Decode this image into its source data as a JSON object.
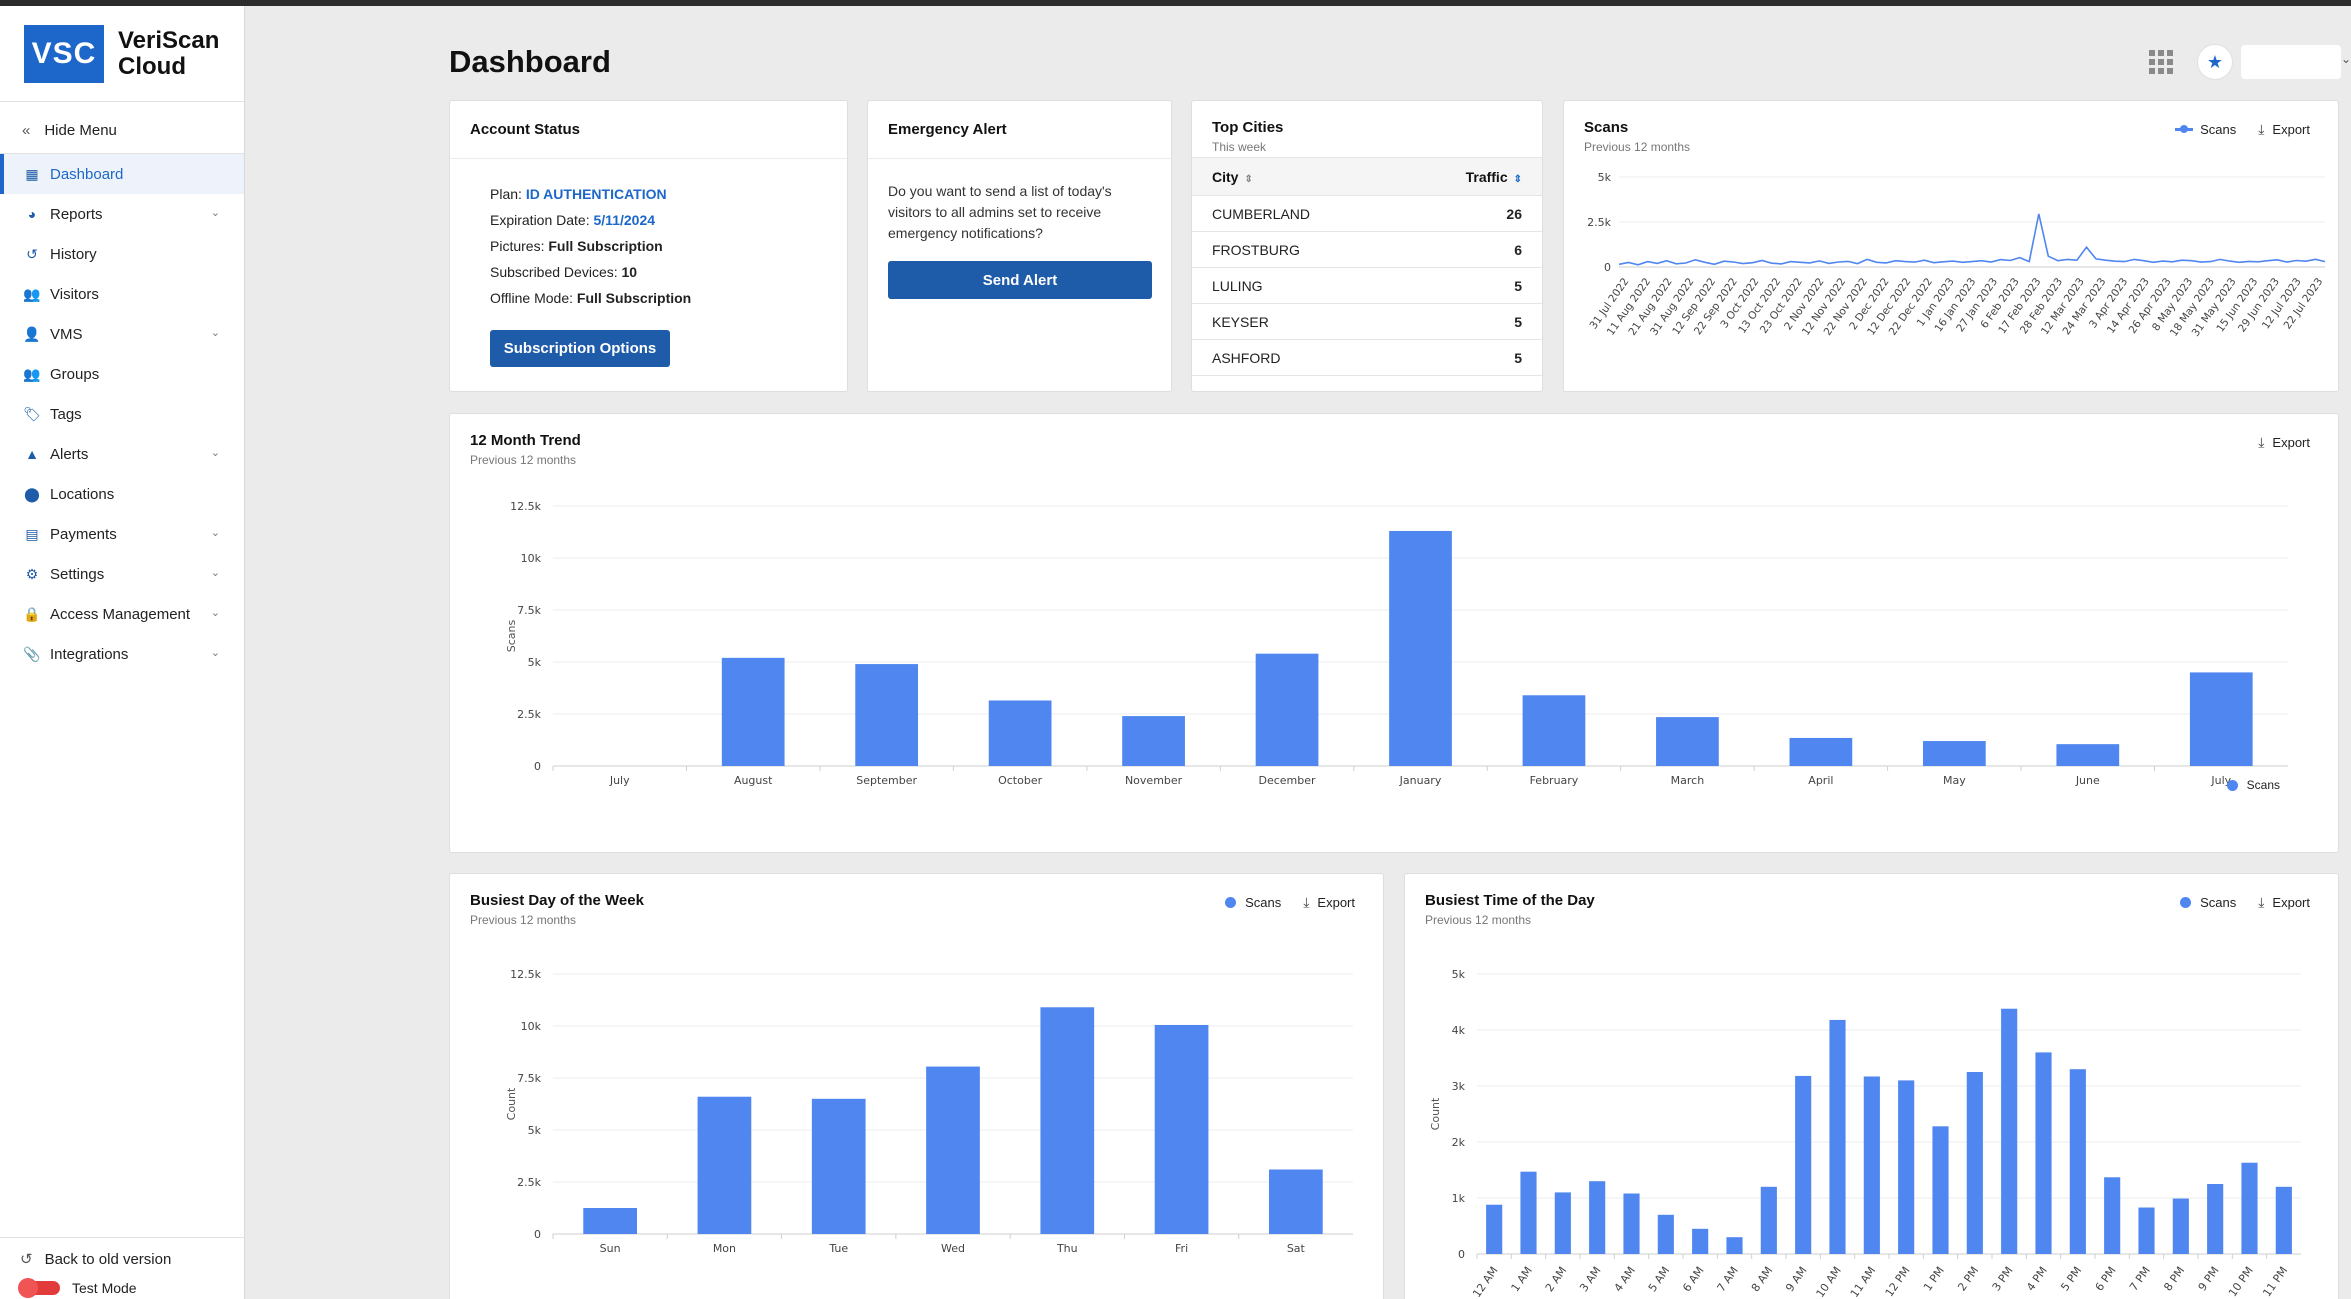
{
  "app": {
    "logo_mark": "VSC",
    "name_line1": "VeriScan",
    "name_line2": "Cloud"
  },
  "sidebar": {
    "hide_menu": "Hide Menu",
    "items": [
      {
        "label": "Dashboard",
        "icon": "dashboard-icon",
        "active": true,
        "expandable": false
      },
      {
        "label": "Reports",
        "icon": "pie-chart-icon",
        "expandable": true
      },
      {
        "label": "History",
        "icon": "history-icon",
        "expandable": false
      },
      {
        "label": "Visitors",
        "icon": "users-icon",
        "expandable": false
      },
      {
        "label": "VMS",
        "icon": "person-icon",
        "expandable": true
      },
      {
        "label": "Groups",
        "icon": "group-icon",
        "expandable": false
      },
      {
        "label": "Tags",
        "icon": "tag-icon",
        "expandable": false
      },
      {
        "label": "Alerts",
        "icon": "warning-icon",
        "expandable": true
      },
      {
        "label": "Locations",
        "icon": "location-pin-icon",
        "expandable": false
      },
      {
        "label": "Payments",
        "icon": "payment-icon",
        "expandable": true
      },
      {
        "label": "Settings",
        "icon": "gear-icon",
        "expandable": true
      },
      {
        "label": "Access Management",
        "icon": "lock-icon",
        "expandable": true
      },
      {
        "label": "Integrations",
        "icon": "paperclip-icon",
        "expandable": true
      }
    ],
    "back_old": "Back to old version",
    "test_mode": "Test Mode"
  },
  "header": {
    "title": "Dashboard"
  },
  "account_status": {
    "title": "Account Status",
    "plan_label": "Plan:",
    "plan_value": "ID AUTHENTICATION",
    "expiration_label": "Expiration Date:",
    "expiration_value": "5/11/2024",
    "pictures_label": "Pictures:",
    "pictures_value": "Full Subscription",
    "devices_label": "Subscribed Devices:",
    "devices_value": "10",
    "offline_label": "Offline Mode:",
    "offline_value": "Full Subscription",
    "button": "Subscription Options"
  },
  "emergency_alert": {
    "title": "Emergency Alert",
    "text": "Do you want to send a list of today's visitors to all admins set to receive emergency notifications?",
    "button": "Send Alert"
  },
  "top_cities": {
    "title": "Top Cities",
    "subtitle": "This week",
    "col_city": "City",
    "col_traffic": "Traffic",
    "rows": [
      {
        "city": "CUMBERLAND",
        "traffic": "26"
      },
      {
        "city": "FROSTBURG",
        "traffic": "6"
      },
      {
        "city": "LULING",
        "traffic": "5"
      },
      {
        "city": "KEYSER",
        "traffic": "5"
      },
      {
        "city": "ASHFORD",
        "traffic": "5"
      }
    ]
  },
  "scans_card": {
    "title": "Scans",
    "subtitle": "Previous 12 months",
    "legend": "Scans",
    "export": "Export"
  },
  "trend_card": {
    "title": "12 Month Trend",
    "subtitle": "Previous 12 months",
    "legend": "Scans",
    "export": "Export"
  },
  "day_card": {
    "title": "Busiest Day of the Week",
    "subtitle": "Previous 12 months",
    "legend": "Scans",
    "export": "Export"
  },
  "time_card": {
    "title": "Busiest Time of the Day",
    "subtitle": "Previous 12 months",
    "legend": "Scans",
    "export": "Export"
  },
  "chart_data": [
    {
      "id": "scans",
      "type": "line",
      "title": "Scans",
      "yticks": [
        "0",
        "2.5k",
        "5k"
      ],
      "ylim": [
        0,
        5000
      ],
      "xticks": [
        "31 Jul 2022",
        "11 Aug 2022",
        "21 Aug 2022",
        "31 Aug 2022",
        "12 Sep 2022",
        "22 Sep 2022",
        "3 Oct 2022",
        "13 Oct 2022",
        "23 Oct 2022",
        "2 Nov 2022",
        "12 Nov 2022",
        "22 Nov 2022",
        "2 Dec 2022",
        "12 Dec 2022",
        "22 Dec 2022",
        "1 Jan 2023",
        "16 Jan 2023",
        "27 Jan 2023",
        "6 Feb 2023",
        "17 Feb 2023",
        "28 Feb 2023",
        "12 Mar 2023",
        "24 Mar 2023",
        "3 Apr 2023",
        "14 Apr 2023",
        "26 Apr 2023",
        "8 May 2023",
        "18 May 2023",
        "31 May 2023",
        "15 Jun 2023",
        "29 Jun 2023",
        "12 Jul 2023",
        "22 Jul 2023"
      ],
      "series": [
        {
          "name": "Scans",
          "values": [
            150,
            250,
            120,
            300,
            200,
            350,
            180,
            220,
            400,
            260,
            150,
            320,
            280,
            190,
            240,
            360,
            210,
            170,
            300,
            260,
            230,
            340,
            200,
            280,
            310,
            190,
            420,
            260,
            230,
            350,
            300,
            270,
            380,
            240,
            290,
            330,
            260,
            300,
            350,
            280,
            410,
            360,
            520,
            300,
            2950,
            600,
            350,
            420,
            380,
            1100,
            450,
            380,
            320,
            300,
            420,
            350,
            260,
            330,
            290,
            380,
            350,
            270,
            300,
            420,
            330,
            260,
            310,
            290,
            350,
            400,
            280,
            360,
            320,
            430,
            300
          ]
        }
      ]
    },
    {
      "id": "trend",
      "type": "bar",
      "title": "12 Month Trend",
      "ylabel": "Scans",
      "ylim": [
        0,
        12500
      ],
      "yticks": [
        "0",
        "2.5k",
        "5k",
        "7.5k",
        "10k",
        "12.5k"
      ],
      "categories": [
        "July",
        "August",
        "September",
        "October",
        "November",
        "December",
        "January",
        "February",
        "March",
        "April",
        "May",
        "June",
        "July"
      ],
      "series": [
        {
          "name": "Scans",
          "values": [
            0,
            5200,
            4900,
            3150,
            2400,
            5400,
            11300,
            3400,
            2350,
            1350,
            1200,
            1050,
            4500
          ]
        }
      ]
    },
    {
      "id": "day",
      "type": "bar",
      "title": "Busiest Day of the Week",
      "ylabel": "Count",
      "ylim": [
        0,
        12500
      ],
      "yticks": [
        "0",
        "2.5k",
        "5k",
        "7.5k",
        "10k",
        "12.5k"
      ],
      "categories": [
        "Sun",
        "Mon",
        "Tue",
        "Wed",
        "Thu",
        "Fri",
        "Sat"
      ],
      "series": [
        {
          "name": "Scans",
          "values": [
            1250,
            6600,
            6500,
            8050,
            10900,
            10050,
            3100
          ]
        }
      ]
    },
    {
      "id": "time",
      "type": "bar",
      "title": "Busiest Time of the Day",
      "ylabel": "Count",
      "ylim": [
        0,
        5000
      ],
      "yticks": [
        "0",
        "1k",
        "2k",
        "3k",
        "4k",
        "5k"
      ],
      "categories": [
        "12 AM",
        "1 AM",
        "2 AM",
        "3 AM",
        "4 AM",
        "5 AM",
        "6 AM",
        "7 AM",
        "8 AM",
        "9 AM",
        "10 AM",
        "11 AM",
        "12 PM",
        "1 PM",
        "2 PM",
        "3 PM",
        "4 PM",
        "5 PM",
        "6 PM",
        "7 PM",
        "8 PM",
        "9 PM",
        "10 PM",
        "11 PM"
      ],
      "series": [
        {
          "name": "Scans",
          "values": [
            880,
            1470,
            1100,
            1300,
            1080,
            700,
            450,
            300,
            1200,
            3180,
            4180,
            3170,
            3100,
            2280,
            3250,
            4380,
            3600,
            3300,
            1370,
            830,
            990,
            1250,
            1630,
            1200
          ]
        }
      ]
    }
  ]
}
